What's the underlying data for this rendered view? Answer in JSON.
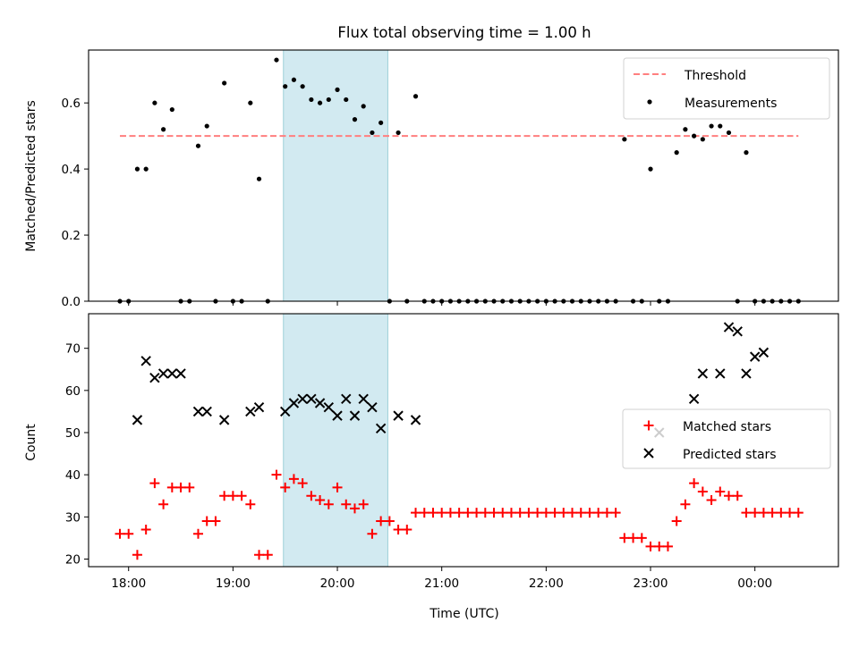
{
  "chart_data": [
    {
      "type": "scatter",
      "title": "Flux total observing time = 1.00 h",
      "ylabel": "Matched/Predicted stars",
      "xlabel": "",
      "xlim": [
        "17:37",
        "00:48"
      ],
      "ylim": [
        0,
        0.76
      ],
      "yticks": [
        "0.0",
        "0.2",
        "0.4",
        "0.6"
      ],
      "shaded_interval": [
        "19:29",
        "20:29"
      ],
      "shaded_color": "#add8e6",
      "threshold": {
        "name": "Threshold",
        "value": 0.5,
        "x_range": [
          "17:55",
          "00:25"
        ],
        "color": "#ff7f7f"
      },
      "legend_position": "upper right",
      "series": [
        {
          "name": "Measurements",
          "color": "#000000",
          "x": [
            "17:55",
            "18:00",
            "18:05",
            "18:10",
            "18:15",
            "18:20",
            "18:25",
            "18:30",
            "18:35",
            "18:40",
            "18:45",
            "18:50",
            "18:55",
            "19:00",
            "19:05",
            "19:10",
            "19:15",
            "19:20",
            "19:25",
            "19:30",
            "19:35",
            "19:40",
            "19:45",
            "19:50",
            "19:55",
            "20:00",
            "20:05",
            "20:10",
            "20:15",
            "20:20",
            "20:25",
            "20:30",
            "20:35",
            "20:40",
            "20:45",
            "20:50",
            "20:55",
            "21:00",
            "21:05",
            "21:10",
            "21:15",
            "21:20",
            "21:25",
            "21:30",
            "21:35",
            "21:40",
            "21:45",
            "21:50",
            "21:55",
            "22:00",
            "22:05",
            "22:10",
            "22:15",
            "22:20",
            "22:25",
            "22:30",
            "22:35",
            "22:40",
            "22:45",
            "22:50",
            "22:55",
            "23:00",
            "23:05",
            "23:10",
            "23:15",
            "23:20",
            "23:25",
            "23:30",
            "23:35",
            "23:40",
            "23:45",
            "23:50",
            "23:55",
            "00:00",
            "00:05",
            "00:10",
            "00:15",
            "00:20",
            "00:25"
          ],
          "y": [
            0.0,
            0.0,
            0.4,
            0.4,
            0.6,
            0.52,
            0.58,
            0.0,
            0.0,
            0.47,
            0.53,
            0.0,
            0.66,
            0.0,
            0.0,
            0.6,
            0.37,
            0.0,
            0.73,
            0.65,
            0.67,
            0.65,
            0.61,
            0.6,
            0.61,
            0.64,
            0.61,
            0.55,
            0.59,
            0.51,
            0.54,
            0.0,
            0.51,
            0.0,
            0.62,
            0.0,
            0.0,
            0.0,
            0.0,
            0.0,
            0.0,
            0.0,
            0.0,
            0.0,
            0.0,
            0.0,
            0.0,
            0.0,
            0.0,
            0.0,
            0.0,
            0.0,
            0.0,
            0.0,
            0.0,
            0.0,
            0.0,
            0.0,
            0.49,
            0.0,
            0.0,
            0.4,
            0.0,
            0.0,
            0.45,
            0.52,
            0.5,
            0.49,
            0.53,
            0.53,
            0.51,
            0.0,
            0.45,
            0.0,
            0.0,
            0.0,
            0.0,
            0.0,
            0.0
          ]
        }
      ]
    },
    {
      "type": "scatter",
      "title": "",
      "ylabel": "Count",
      "xlabel": "Time (UTC)",
      "xlim": [
        "17:37",
        "00:48"
      ],
      "ylim": [
        18.2,
        78.2
      ],
      "yticks": [
        "20",
        "30",
        "40",
        "50",
        "60",
        "70"
      ],
      "xticks": [
        "18:00",
        "19:00",
        "20:00",
        "21:00",
        "22:00",
        "23:00",
        "00:00"
      ],
      "shaded_interval": [
        "19:29",
        "20:29"
      ],
      "shaded_color": "#add8e6",
      "legend_position": "center right",
      "series": [
        {
          "name": "Matched stars",
          "marker": "plus",
          "color": "#ff0000",
          "x": [
            "17:55",
            "18:00",
            "18:05",
            "18:10",
            "18:15",
            "18:20",
            "18:25",
            "18:30",
            "18:35",
            "18:40",
            "18:45",
            "18:50",
            "18:55",
            "19:00",
            "19:05",
            "19:10",
            "19:15",
            "19:20",
            "19:25",
            "19:30",
            "19:35",
            "19:40",
            "19:45",
            "19:50",
            "19:55",
            "20:00",
            "20:05",
            "20:10",
            "20:15",
            "20:20",
            "20:25",
            "20:30",
            "20:35",
            "20:40",
            "20:45",
            "20:50",
            "20:55",
            "21:00",
            "21:05",
            "21:10",
            "21:15",
            "21:20",
            "21:25",
            "21:30",
            "21:35",
            "21:40",
            "21:45",
            "21:50",
            "21:55",
            "22:00",
            "22:05",
            "22:10",
            "22:15",
            "22:20",
            "22:25",
            "22:30",
            "22:35",
            "22:40",
            "22:45",
            "22:50",
            "22:55",
            "23:00",
            "23:05",
            "23:10",
            "23:15",
            "23:20",
            "23:25",
            "23:30",
            "23:35",
            "23:40",
            "23:45",
            "23:50",
            "23:55",
            "00:00",
            "00:05",
            "00:10",
            "00:15",
            "00:20",
            "00:25"
          ],
          "y": [
            26,
            26,
            21,
            27,
            38,
            33,
            37,
            37,
            37,
            26,
            29,
            29,
            35,
            35,
            35,
            33,
            21,
            21,
            40,
            37,
            39,
            38,
            35,
            34,
            33,
            37,
            33,
            32,
            33,
            26,
            29,
            29,
            27,
            27,
            31,
            31,
            31,
            31,
            31,
            31,
            31,
            31,
            31,
            31,
            31,
            31,
            31,
            31,
            31,
            31,
            31,
            31,
            31,
            31,
            31,
            31,
            31,
            31,
            25,
            25,
            25,
            23,
            23,
            23,
            29,
            33,
            38,
            36,
            34,
            36,
            35,
            35,
            31,
            31,
            31,
            31,
            31,
            31,
            31
          ]
        },
        {
          "name": "Predicted stars",
          "marker": "x",
          "color": "#000000",
          "x": [
            "18:05",
            "18:10",
            "18:15",
            "18:20",
            "18:25",
            "18:30",
            "18:40",
            "18:45",
            "18:55",
            "19:10",
            "19:15",
            "19:30",
            "19:35",
            "19:40",
            "19:45",
            "19:50",
            "19:55",
            "20:00",
            "20:05",
            "20:10",
            "20:15",
            "20:20",
            "20:25",
            "20:35",
            "20:45",
            "23:05",
            "23:25",
            "23:30",
            "23:40",
            "23:45",
            "23:50",
            "23:55",
            "00:00",
            "00:05"
          ],
          "y": [
            53,
            67,
            63,
            64,
            64,
            64,
            55,
            55,
            53,
            55,
            56,
            55,
            57,
            58,
            58,
            57,
            56,
            54,
            58,
            54,
            58,
            56,
            51,
            54,
            53,
            50,
            58,
            64,
            64,
            75,
            74,
            64,
            68,
            69
          ]
        }
      ]
    }
  ]
}
